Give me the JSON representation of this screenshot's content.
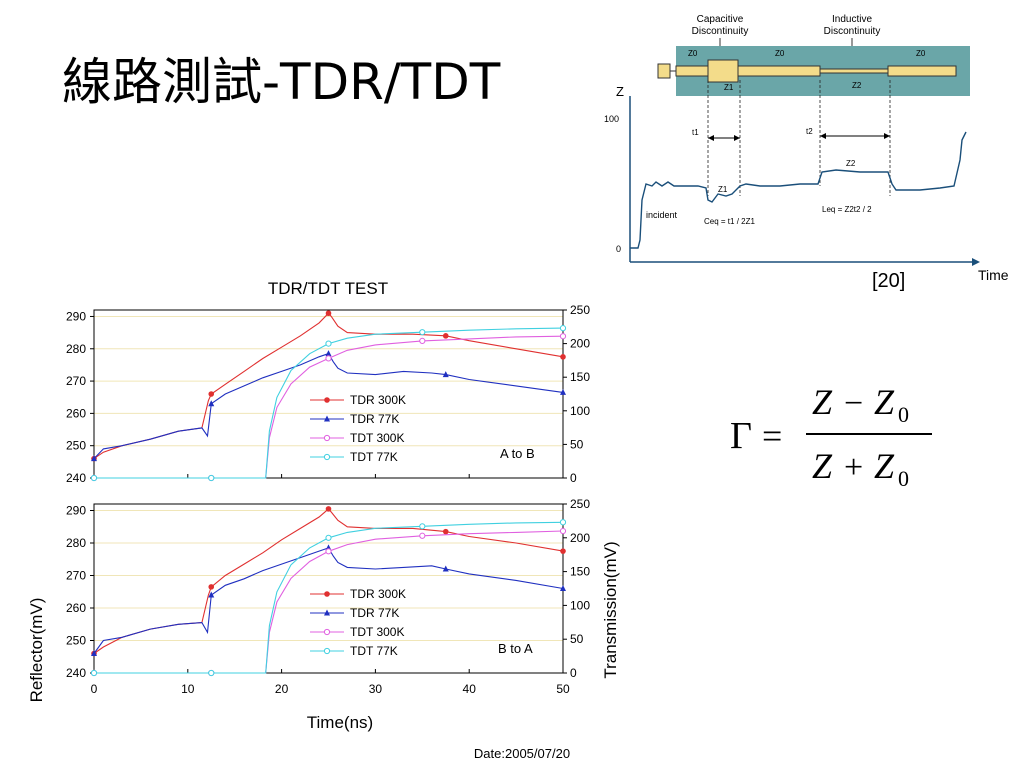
{
  "slide": {
    "title": "線路測試-TDR/TDT",
    "reference": "[20]"
  },
  "formula": {
    "lhs": "Γ",
    "eq": "=",
    "num_a": "Z",
    "num_op": "−",
    "num_b": "Z",
    "num_sub": "0",
    "den_a": "Z",
    "den_op": "+",
    "den_b": "Z",
    "den_sub": "0"
  },
  "diagram": {
    "cap_label_1": "Capacitive",
    "cap_label_2": "Discontinuity",
    "ind_label_1": "Inductive",
    "ind_label_2": "Discontinuity",
    "z0_a": "Z0",
    "z0_b": "Z0",
    "z0_c": "Z0",
    "z0_d": "Z0",
    "z1_top": "Z1",
    "z2_top": "Z2",
    "y_axis": "Z",
    "y_100": "100",
    "y_0": "0",
    "x_axis": "Time",
    "t1": "t1",
    "t2": "t2",
    "z1_wave": "Z1",
    "z2_wave": "Z2",
    "incident": "incident",
    "ceq": "Ceq = t1 / 2Z1",
    "leq": "Leq = Z2t2 / 2",
    "colors": {
      "panel": "#6aa6a8",
      "line_body": "#f3dc8a",
      "waveform": "#1a4f7a"
    }
  },
  "chart_data": {
    "type": "line",
    "title": "TDR/TDT TEST",
    "xlabel": "Time(ns)",
    "ylabel": "Reflector(mV)",
    "y2label": "Transmission(mV)",
    "date_label": "Date:2005/07/20",
    "xlim": [
      0,
      50
    ],
    "xticks": [
      0,
      10,
      20,
      30,
      40,
      50
    ],
    "ylim": [
      240,
      292
    ],
    "yticks": [
      240,
      250,
      260,
      270,
      280,
      290
    ],
    "y2lim": [
      0,
      250
    ],
    "y2ticks": [
      0,
      50,
      100,
      150,
      200,
      250
    ],
    "legend_position": "center",
    "panels": [
      {
        "label": "A to B",
        "series": [
          {
            "name": "TDR 300K",
            "axis": "left",
            "color": "#e03030",
            "marker": "circle-filled",
            "points": [
              [
                0,
                246
              ],
              [
                1,
                248
              ],
              [
                3,
                250
              ],
              [
                6,
                252
              ],
              [
                9,
                254.5
              ],
              [
                11.5,
                255.5
              ],
              [
                12.2,
                264
              ],
              [
                12.5,
                266
              ],
              [
                14,
                269
              ],
              [
                16,
                273
              ],
              [
                18,
                277
              ],
              [
                20,
                280.5
              ],
              [
                22,
                284
              ],
              [
                24,
                288
              ],
              [
                25,
                291
              ],
              [
                25.3,
                290
              ],
              [
                26,
                287
              ],
              [
                27,
                285
              ],
              [
                30,
                284.5
              ],
              [
                34,
                284.5
              ],
              [
                37.5,
                284
              ],
              [
                40,
                282.5
              ],
              [
                45,
                280
              ],
              [
                50,
                277.5
              ]
            ]
          },
          {
            "name": "TDR 77K",
            "axis": "left",
            "color": "#2030c0",
            "marker": "triangle-filled",
            "points": [
              [
                0,
                246
              ],
              [
                1,
                249
              ],
              [
                3,
                250
              ],
              [
                6,
                252
              ],
              [
                9,
                254.5
              ],
              [
                11.5,
                255.5
              ],
              [
                12.1,
                253
              ],
              [
                12.5,
                263
              ],
              [
                14,
                266
              ],
              [
                16,
                268.5
              ],
              [
                18,
                271
              ],
              [
                20,
                273
              ],
              [
                22,
                275
              ],
              [
                24,
                277.5
              ],
              [
                25,
                278.5
              ],
              [
                25.5,
                276
              ],
              [
                26,
                274
              ],
              [
                27,
                272.5
              ],
              [
                30,
                272
              ],
              [
                33,
                273
              ],
              [
                36,
                272.5
              ],
              [
                37.5,
                272
              ],
              [
                40,
                270.5
              ],
              [
                45,
                268.5
              ],
              [
                50,
                266.5
              ]
            ]
          },
          {
            "name": "TDT 300K",
            "axis": "right",
            "color": "#e060e0",
            "marker": "circle-open",
            "points": [
              [
                0,
                0
              ],
              [
                12.5,
                0
              ],
              [
                18.3,
                0
              ],
              [
                18.7,
                60
              ],
              [
                19.5,
                105
              ],
              [
                21,
                140
              ],
              [
                23,
                165
              ],
              [
                25,
                178
              ],
              [
                27,
                190
              ],
              [
                30,
                198
              ],
              [
                35,
                204
              ],
              [
                40,
                207
              ],
              [
                45,
                210
              ],
              [
                50,
                211
              ]
            ]
          },
          {
            "name": "TDT 77K",
            "axis": "right",
            "color": "#40d0e0",
            "marker": "circle-open",
            "points": [
              [
                0,
                0
              ],
              [
                12.5,
                0
              ],
              [
                18.3,
                0
              ],
              [
                18.7,
                70
              ],
              [
                19.5,
                120
              ],
              [
                21,
                160
              ],
              [
                23,
                185
              ],
              [
                25,
                200
              ],
              [
                27,
                208
              ],
              [
                30,
                214
              ],
              [
                35,
                217
              ],
              [
                40,
                220
              ],
              [
                45,
                222
              ],
              [
                50,
                223
              ]
            ]
          }
        ]
      },
      {
        "label": "B to A",
        "series": [
          {
            "name": "TDR 300K",
            "axis": "left",
            "color": "#e03030",
            "marker": "circle-filled",
            "points": [
              [
                0,
                246
              ],
              [
                1,
                248
              ],
              [
                3,
                251
              ],
              [
                6,
                253.5
              ],
              [
                9,
                255
              ],
              [
                11.5,
                255.5
              ],
              [
                12.2,
                264
              ],
              [
                12.5,
                266.5
              ],
              [
                14,
                270
              ],
              [
                16,
                273.5
              ],
              [
                18,
                277
              ],
              [
                20,
                281
              ],
              [
                22,
                284.5
              ],
              [
                24,
                288
              ],
              [
                25,
                290.5
              ],
              [
                25.3,
                289.5
              ],
              [
                26,
                287
              ],
              [
                27,
                285
              ],
              [
                30,
                284.5
              ],
              [
                34,
                284.5
              ],
              [
                37.5,
                283.5
              ],
              [
                40,
                282
              ],
              [
                45,
                280
              ],
              [
                50,
                277.5
              ]
            ]
          },
          {
            "name": "TDR 77K",
            "axis": "left",
            "color": "#2030c0",
            "marker": "triangle-filled",
            "points": [
              [
                0,
                246
              ],
              [
                1,
                250
              ],
              [
                3,
                251
              ],
              [
                6,
                253.5
              ],
              [
                9,
                255
              ],
              [
                11.5,
                255.5
              ],
              [
                12.1,
                252.5
              ],
              [
                12.5,
                264
              ],
              [
                14,
                267
              ],
              [
                16,
                269
              ],
              [
                18,
                271.5
              ],
              [
                20,
                273.5
              ],
              [
                22,
                275.5
              ],
              [
                24,
                277.5
              ],
              [
                25,
                278.5
              ],
              [
                25.5,
                276
              ],
              [
                26,
                274
              ],
              [
                27,
                272.5
              ],
              [
                30,
                272
              ],
              [
                33,
                272.5
              ],
              [
                36,
                273
              ],
              [
                37.5,
                272
              ],
              [
                40,
                270.5
              ],
              [
                45,
                268.5
              ],
              [
                50,
                266
              ]
            ]
          },
          {
            "name": "TDT 300K",
            "axis": "right",
            "color": "#e060e0",
            "marker": "circle-open",
            "points": [
              [
                0,
                0
              ],
              [
                12.5,
                0
              ],
              [
                18.3,
                0
              ],
              [
                18.7,
                60
              ],
              [
                19.5,
                105
              ],
              [
                21,
                140
              ],
              [
                23,
                165
              ],
              [
                25,
                180
              ],
              [
                27,
                190
              ],
              [
                30,
                198
              ],
              [
                35,
                203
              ],
              [
                40,
                206
              ],
              [
                45,
                208
              ],
              [
                50,
                210
              ]
            ]
          },
          {
            "name": "TDT 77K",
            "axis": "right",
            "color": "#40d0e0",
            "marker": "circle-open",
            "points": [
              [
                0,
                0
              ],
              [
                12.5,
                0
              ],
              [
                18.3,
                0
              ],
              [
                18.7,
                70
              ],
              [
                19.5,
                120
              ],
              [
                21,
                160
              ],
              [
                23,
                185
              ],
              [
                25,
                200
              ],
              [
                27,
                208
              ],
              [
                30,
                214
              ],
              [
                35,
                217
              ],
              [
                40,
                220
              ],
              [
                45,
                222
              ],
              [
                50,
                223
              ]
            ]
          }
        ]
      }
    ]
  }
}
